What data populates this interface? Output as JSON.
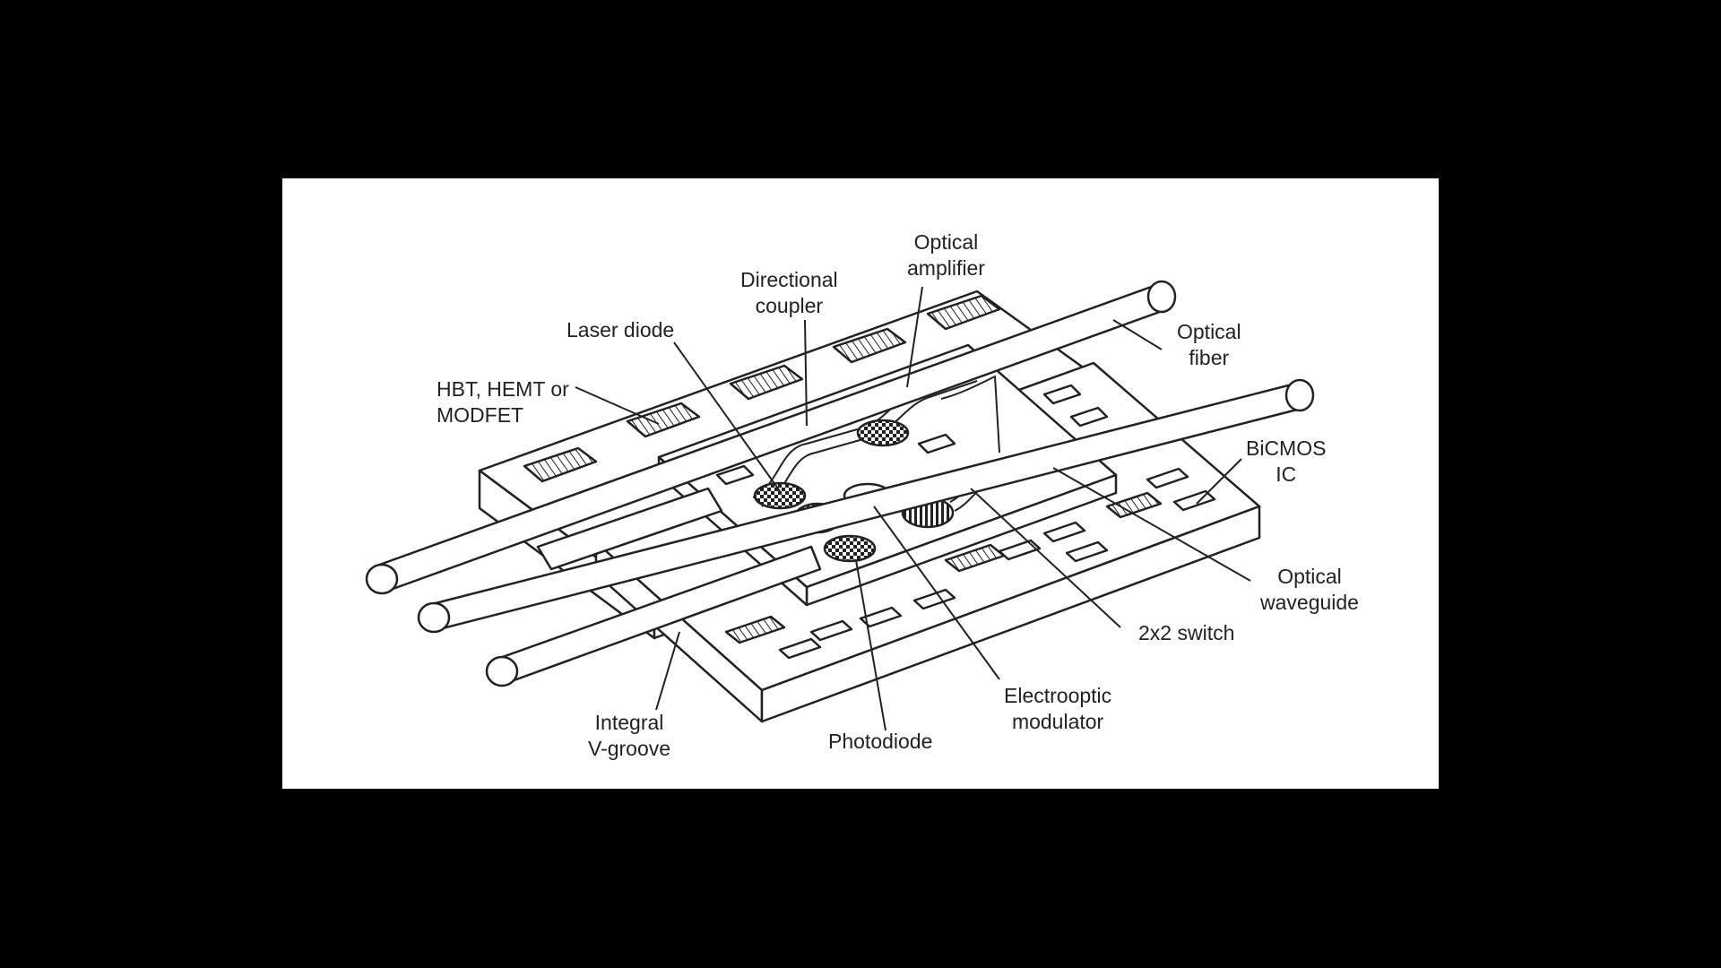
{
  "colors": {
    "background": "#000000",
    "panel": "#ffffff",
    "ink": "#222222"
  },
  "labels": {
    "optical_amplifier": "Optical\namplifier",
    "directional_coupler": "Directional\ncoupler",
    "optical_fiber": "Optical\nfiber",
    "laser_diode": "Laser diode",
    "hbt_hemt_modfet": "HBT, HEMT or\nMODFET",
    "bicmos_ic": "BiCMOS\nIC",
    "optical_waveguide": "Optical\nwaveguide",
    "switch_2x2": "2x2 switch",
    "electrooptic_modulator": "Electrooptic\nmodulator",
    "photodiode": "Photodiode",
    "integral_vgroove": "Integral\nV-groove"
  }
}
